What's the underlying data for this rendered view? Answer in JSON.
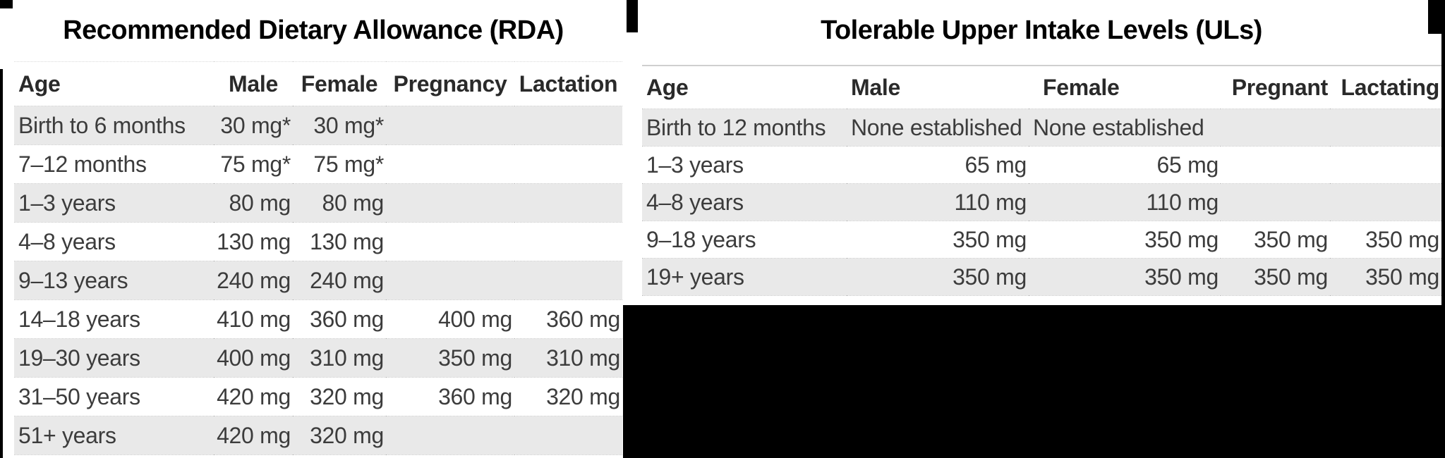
{
  "colors": {
    "background": "#ffffff",
    "backdrop": "#000000",
    "stripe": "#e9e9e9",
    "cell_text": "#3c3c3c",
    "header_text": "#2a2a2a",
    "title_text": "#000000",
    "row_border": "#c4c4c4",
    "top_border": "#cfcfcf"
  },
  "rda_table": {
    "title": "Recommended Dietary Allowance (RDA)",
    "columns": [
      "Age",
      "Male",
      "Female",
      "Pregnancy",
      "Lactation"
    ],
    "rows": [
      [
        "Birth to 6 months",
        "30 mg*",
        "30 mg*",
        "",
        ""
      ],
      [
        "7–12 months",
        "75 mg*",
        "75 mg*",
        "",
        ""
      ],
      [
        "1–3 years",
        "80 mg",
        "80 mg",
        "",
        ""
      ],
      [
        "4–8 years",
        "130 mg",
        "130 mg",
        "",
        ""
      ],
      [
        "9–13 years",
        "240 mg",
        "240 mg",
        "",
        ""
      ],
      [
        "14–18 years",
        "410 mg",
        "360 mg",
        "400 mg",
        "360 mg"
      ],
      [
        "19–30 years",
        "400 mg",
        "310 mg",
        "350 mg",
        "310 mg"
      ],
      [
        "31–50 years",
        "420 mg",
        "320 mg",
        "360 mg",
        "320 mg"
      ],
      [
        "51+ years",
        "420 mg",
        "320 mg",
        "",
        ""
      ]
    ]
  },
  "ul_table": {
    "title": "Tolerable Upper Intake Levels (ULs)",
    "columns": [
      "Age",
      "Male",
      "Female",
      "Pregnant",
      "Lactating"
    ],
    "rows": [
      [
        "Birth to 12 months",
        "None established",
        "None established",
        "",
        ""
      ],
      [
        "1–3 years",
        "65 mg",
        "65 mg",
        "",
        ""
      ],
      [
        "4–8 years",
        "110 mg",
        "110 mg",
        "",
        ""
      ],
      [
        "9–18 years",
        "350 mg",
        "350 mg",
        "350 mg",
        "350 mg"
      ],
      [
        "19+ years",
        "350 mg",
        "350 mg",
        "350 mg",
        "350 mg"
      ]
    ]
  }
}
